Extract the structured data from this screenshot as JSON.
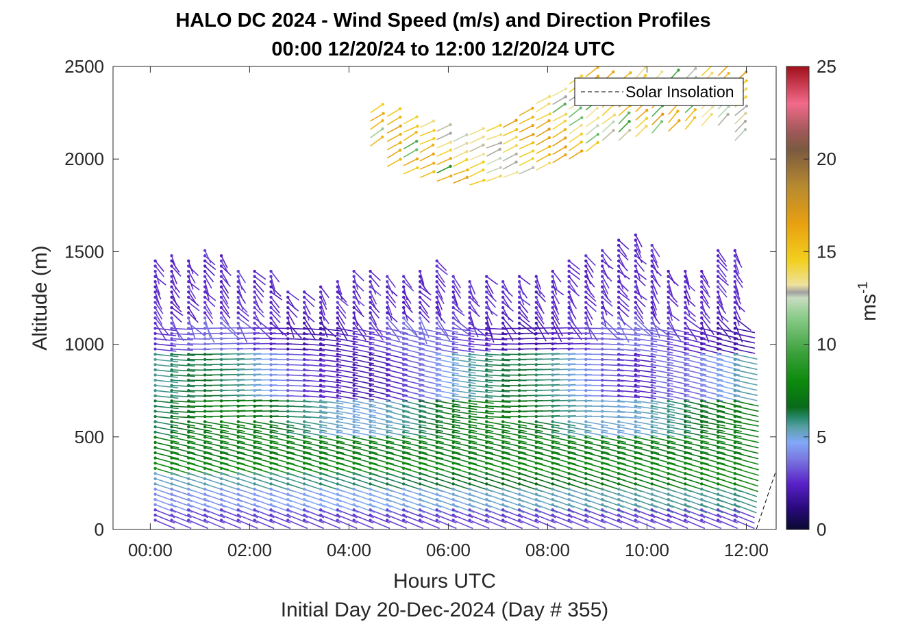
{
  "chart_data": {
    "type": "wind barb profile",
    "title_line1": "HALO DC 2024 - Wind Speed (m/s) and Direction Profiles",
    "title_line2": "00:00 12/20/24 to 12:00 12/20/24  UTC",
    "xlabel": "Hours UTC",
    "ylabel": "Altitude (m)",
    "subtitle": "Initial Day 20-Dec-2024 (Day # 355)",
    "x_range_hours": [
      -0.75,
      12.6
    ],
    "x_ticks": [
      {
        "value": 0,
        "label": "00:00"
      },
      {
        "value": 2,
        "label": "02:00"
      },
      {
        "value": 4,
        "label": "04:00"
      },
      {
        "value": 6,
        "label": "06:00"
      },
      {
        "value": 8,
        "label": "08:00"
      },
      {
        "value": 10,
        "label": "10:00"
      },
      {
        "value": 12,
        "label": "12:00"
      }
    ],
    "y_range_m": [
      0,
      2500
    ],
    "y_ticks": [
      {
        "value": 0,
        "label": "0"
      },
      {
        "value": 500,
        "label": "500"
      },
      {
        "value": 1000,
        "label": "1000"
      },
      {
        "value": 1500,
        "label": "1500"
      },
      {
        "value": 2000,
        "label": "2000"
      },
      {
        "value": 2500,
        "label": "2500"
      }
    ],
    "colorbar": {
      "label": "ms",
      "label_exponent": "-1",
      "range": [
        0,
        25
      ],
      "ticks": [
        {
          "value": 0,
          "label": "0"
        },
        {
          "value": 5,
          "label": "5"
        },
        {
          "value": 10,
          "label": "10"
        },
        {
          "value": 15,
          "label": "15"
        },
        {
          "value": 20,
          "label": "20"
        },
        {
          "value": 25,
          "label": "25"
        }
      ],
      "stops": [
        {
          "v": 0,
          "c": "#0a0a30"
        },
        {
          "v": 1.2,
          "c": "#2a0a80"
        },
        {
          "v": 2.5,
          "c": "#5a22c8"
        },
        {
          "v": 3.8,
          "c": "#7a78e0"
        },
        {
          "v": 4.7,
          "c": "#82a8f8"
        },
        {
          "v": 5.5,
          "c": "#5aa0a8"
        },
        {
          "v": 6.0,
          "c": "#2a8a70"
        },
        {
          "v": 6.6,
          "c": "#0a6a1a"
        },
        {
          "v": 8.0,
          "c": "#0c8a0c"
        },
        {
          "v": 9.5,
          "c": "#3aa03a"
        },
        {
          "v": 11.5,
          "c": "#8ccc8c"
        },
        {
          "v": 12.5,
          "c": "#c8dcc0"
        },
        {
          "v": 12.8,
          "c": "#a0a0a0"
        },
        {
          "v": 13.2,
          "c": "#eee2a0"
        },
        {
          "v": 14.5,
          "c": "#f2d020"
        },
        {
          "v": 16.5,
          "c": "#e8a010"
        },
        {
          "v": 18.5,
          "c": "#b88a30"
        },
        {
          "v": 20.5,
          "c": "#7a5a40"
        },
        {
          "v": 21.5,
          "c": "#a05858"
        },
        {
          "v": 23.0,
          "c": "#f26a8a"
        },
        {
          "v": 25.0,
          "c": "#a0101a"
        }
      ]
    },
    "legend": {
      "entries": [
        "Solar Insolation"
      ],
      "placement": "top-right"
    },
    "solar_insolation": {
      "x": [
        -0.75,
        12.2,
        12.6
      ],
      "y": [
        0,
        0,
        320
      ]
    },
    "profile_times_hours": [
      0.1,
      0.43,
      0.77,
      1.1,
      1.43,
      1.77,
      2.1,
      2.43,
      2.77,
      3.1,
      3.43,
      3.77,
      4.1,
      4.43,
      4.77,
      5.1,
      5.43,
      5.77,
      6.1,
      6.43,
      6.77,
      7.1,
      7.43,
      7.77,
      8.1,
      8.43,
      8.77,
      9.1,
      9.43,
      9.77,
      10.1,
      10.43,
      10.77,
      11.1,
      11.43,
      11.77
    ],
    "boundary_layer_top_m": [
      1460,
      1500,
      1460,
      1530,
      1490,
      1420,
      1420,
      1410,
      1290,
      1300,
      1320,
      1350,
      1410,
      1410,
      1380,
      1390,
      1420,
      1460,
      1380,
      1360,
      1380,
      1340,
      1380,
      1390,
      1400,
      1450,
      1490,
      1530,
      1570,
      1600,
      1560,
      1410,
      1420,
      1420,
      1530,
      1520
    ],
    "upper_layer": {
      "bottom_m": [
        0,
        0,
        0,
        0,
        0,
        0,
        0,
        0,
        0,
        0,
        0,
        0,
        0,
        2070,
        1960,
        1920,
        1900,
        1880,
        1870,
        1860,
        1880,
        1900,
        1920,
        1940,
        1980,
        2000,
        2040,
        2100,
        2100,
        2120,
        2140,
        2150,
        2160,
        2180,
        2180,
        2100
      ],
      "top_m": [
        0,
        0,
        0,
        0,
        0,
        0,
        0,
        0,
        0,
        0,
        0,
        0,
        0,
        2250,
        2240,
        2200,
        2190,
        2170,
        2130,
        2130,
        2150,
        2200,
        2260,
        2300,
        2350,
        2420,
        2470,
        2450,
        2450,
        2450,
        2450,
        2450,
        2450,
        2450,
        2450,
        2450
      ],
      "typical_speed_ms": 14.5
    }
  }
}
